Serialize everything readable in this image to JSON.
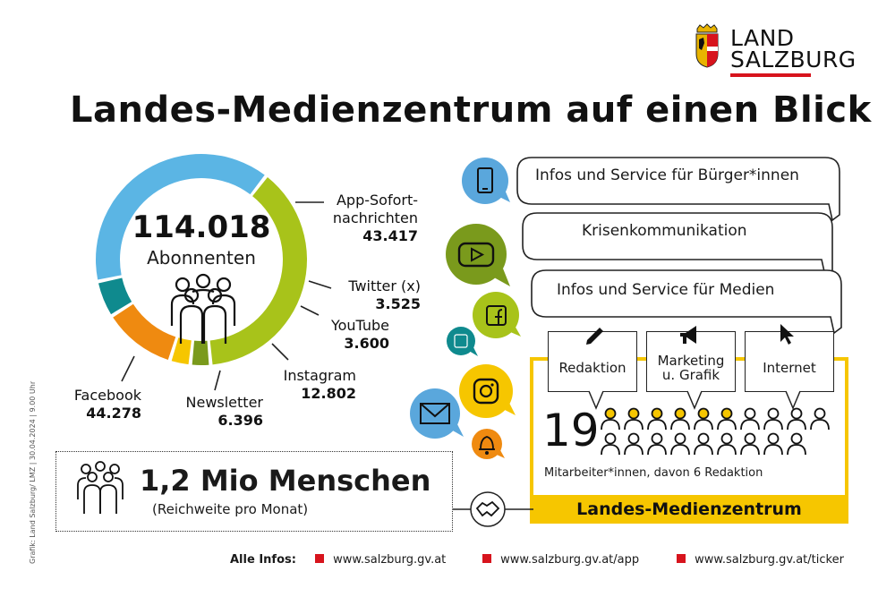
{
  "logo": {
    "line1": "LAND",
    "line2": "SALZBURG",
    "accent_color": "#d7141d"
  },
  "title": "Landes-Medienzentrum auf einen Blick",
  "subscribers": {
    "total": "114.018",
    "total_label": "Abonnenten",
    "segments": [
      {
        "name": "App-Sofort-nachrichten",
        "label_line1": "App-Sofort-",
        "label_line2": "nachrichten",
        "value": "43.417",
        "raw": 43417,
        "color": "#a8c31a"
      },
      {
        "name": "Twitter (x)",
        "label_line1": "Twitter (x)",
        "value": "3.525",
        "raw": 3525,
        "color": "#7a9a1c"
      },
      {
        "name": "YouTube",
        "label_line1": "YouTube",
        "value": "3.600",
        "raw": 3600,
        "color": "#f6c600"
      },
      {
        "name": "Instagram",
        "label_line1": "Instagram",
        "value": "12.802",
        "raw": 12802,
        "color": "#ef8a10"
      },
      {
        "name": "Newsletter",
        "label_line1": "Newsletter",
        "value": "6.396",
        "raw": 6396,
        "color": "#0f8a8e"
      },
      {
        "name": "Facebook",
        "label_line1": "Facebook",
        "value": "44.278",
        "raw": 44278,
        "color": "#5bb5e4"
      }
    ]
  },
  "channels": {
    "items": [
      {
        "icon": "phone-icon",
        "color": "#5aa7dc"
      },
      {
        "icon": "youtube-icon",
        "color": "#7a9a1c"
      },
      {
        "icon": "facebook-icon",
        "color": "#a8c31a"
      },
      {
        "icon": "twitter-icon",
        "color": "#0f8a8e"
      },
      {
        "icon": "instagram-icon",
        "color": "#f6c600"
      },
      {
        "icon": "mail-icon",
        "color": "#5aa7dc"
      },
      {
        "icon": "bell-icon",
        "color": "#ef8a10"
      }
    ]
  },
  "services": {
    "item1": "Infos und Service für Bürger*innen",
    "item2": "Krisenkommunikation",
    "item3": "Infos und Service für Medien"
  },
  "team": {
    "box1": "Redaktion",
    "box2_line1": "Marketing",
    "box2_line2": "u. Grafik",
    "box3": "Internet",
    "staff_count": "19",
    "staff_total": 19,
    "staff_editorial": 6,
    "staff_text": "Mitarbeiter*innen, davon 6 Redaktion",
    "bar_label": "Landes-Medienzentrum",
    "highlight_color": "#f6c600"
  },
  "reach": {
    "value": "1,2 Mio Menschen",
    "sub": "(Reichweite pro Monat)"
  },
  "side_note": "Grafik: Land Salzburg/ LMZ | 30.04.2024 | 9.00 Uhr",
  "footer": {
    "label": "Alle Infos:",
    "link1": "www.salzburg.gv.at",
    "link2": "www.salzburg.gv.at/app",
    "link3": "www.salzburg.gv.at/ticker"
  }
}
